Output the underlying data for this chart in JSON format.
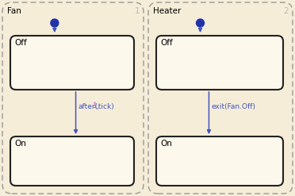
{
  "bg_color": "#f5edd8",
  "border_color": "#999999",
  "state_bg": "#fdf8ec",
  "state_border": "#222222",
  "arrow_color": "#4455bb",
  "dot_color": "#2233aa",
  "label_color_magenta": "#cc44cc",
  "label_color_blue": "#4455bb",
  "fan_title": "Fan",
  "heater_title": "Heater",
  "fan_number": "1",
  "heater_number": "2",
  "transition_label_heater": "exit(Fan.Off)",
  "fig_bg": "#f5edd8",
  "figw": 3.72,
  "figh": 2.47,
  "dpi": 100
}
